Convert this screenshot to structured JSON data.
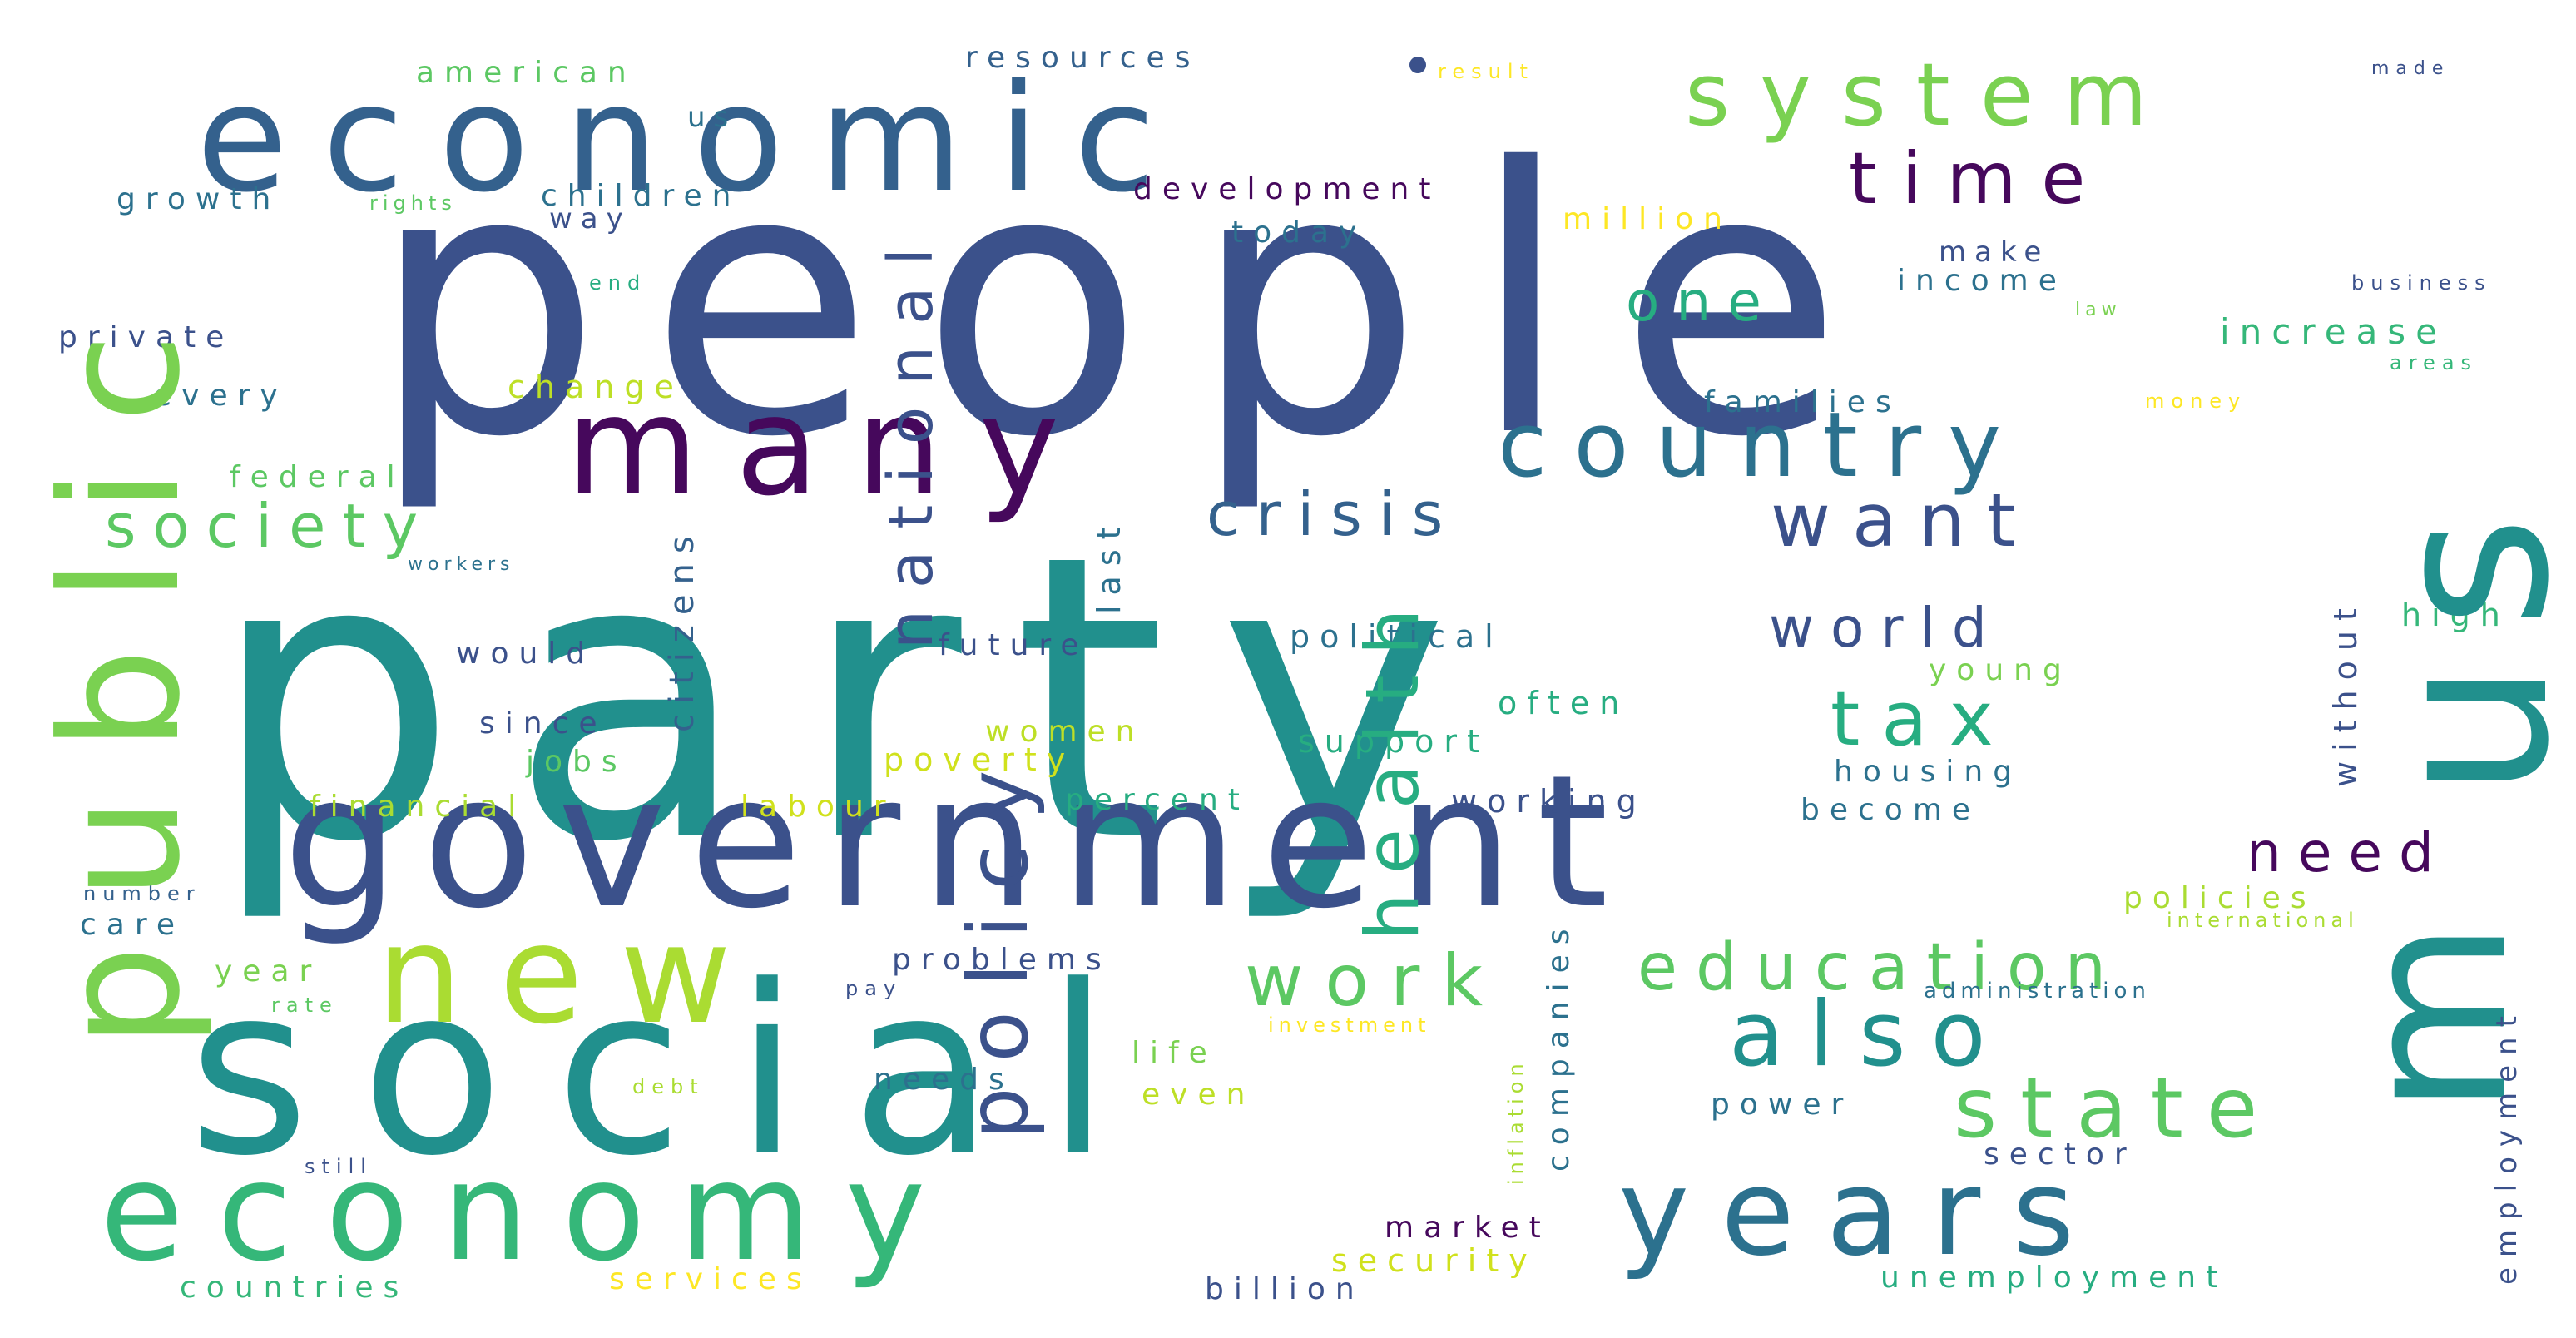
{
  "palette": {
    "dark_purple": "#46085c",
    "indigo": "#3b518b",
    "slate_blue": "#34618d",
    "steel_blue": "#2c718e",
    "teal": "#21908d",
    "sea_green": "#27ad81",
    "green": "#5cc863",
    "lime": "#aadc32",
    "yellow": "#fde725"
  },
  "words": [
    {
      "text": "party",
      "color": "#21908d"
    },
    {
      "text": "people",
      "color": "#3b518b"
    },
    {
      "text": "social",
      "color": "#21908d"
    },
    {
      "text": "government",
      "color": "#3b518b"
    },
    {
      "text": "economic",
      "color": "#34618d"
    },
    {
      "text": "us",
      "color": "#21908d"
    },
    {
      "text": "public",
      "color": "#7ad151"
    },
    {
      "text": "many",
      "color": "#46085c"
    },
    {
      "text": "economy",
      "color": "#35b779"
    },
    {
      "text": "new",
      "color": "#aadc32"
    },
    {
      "text": "system",
      "color": "#7ad151"
    },
    {
      "text": "years",
      "color": "#2c718e"
    },
    {
      "text": "m",
      "color": "#21908d"
    },
    {
      "text": "time",
      "color": "#46085c"
    },
    {
      "text": "country",
      "color": "#2c718e"
    },
    {
      "text": "national",
      "color": "#3b518b"
    },
    {
      "text": "policy",
      "color": "#3b518b"
    },
    {
      "text": "health",
      "color": "#27ad81"
    },
    {
      "text": "also",
      "color": "#21908d"
    },
    {
      "text": "state",
      "color": "#5cc863"
    },
    {
      "text": "education",
      "color": "#5cc863"
    },
    {
      "text": "work",
      "color": "#5cc863"
    },
    {
      "text": "tax",
      "color": "#27ad81"
    },
    {
      "text": "want",
      "color": "#3b518b"
    },
    {
      "text": "society",
      "color": "#5cc863"
    },
    {
      "text": "crisis",
      "color": "#34618d"
    },
    {
      "text": "one",
      "color": "#27ad81"
    },
    {
      "text": "world",
      "color": "#3b518b"
    },
    {
      "text": "need",
      "color": "#46085c"
    },
    {
      "text": "american",
      "color": "#5cc863"
    },
    {
      "text": "resources",
      "color": "#34618d"
    },
    {
      "text": "result",
      "color": "#fde725"
    },
    {
      "text": "made",
      "color": "#3b518b"
    },
    {
      "text": "growth",
      "color": "#2c718e"
    },
    {
      "text": "rights",
      "color": "#5cc863"
    },
    {
      "text": "children",
      "color": "#2c718e"
    },
    {
      "text": "development",
      "color": "#46085c"
    },
    {
      "text": "million",
      "color": "#fde725"
    },
    {
      "text": "way",
      "color": "#3b518b"
    },
    {
      "text": "today",
      "color": "#2c718e"
    },
    {
      "text": "make",
      "color": "#3b518b"
    },
    {
      "text": "income",
      "color": "#2c718e"
    },
    {
      "text": "business",
      "color": "#3b518b"
    },
    {
      "text": "end",
      "color": "#27ad81"
    },
    {
      "text": "law",
      "color": "#7ad151"
    },
    {
      "text": "private",
      "color": "#3b518b"
    },
    {
      "text": "increase",
      "color": "#35b779"
    },
    {
      "text": "areas",
      "color": "#35b779"
    },
    {
      "text": "every",
      "color": "#2c718e"
    },
    {
      "text": "change",
      "color": "#bddf26"
    },
    {
      "text": "families",
      "color": "#2c718e"
    },
    {
      "text": "money",
      "color": "#fde725"
    },
    {
      "text": "citizens",
      "color": "#34618d"
    },
    {
      "text": "federal",
      "color": "#5cc863"
    },
    {
      "text": "last",
      "color": "#2c718e"
    },
    {
      "text": "without",
      "color": "#3b518b"
    },
    {
      "text": "workers",
      "color": "#2c718e"
    },
    {
      "text": "high",
      "color": "#35b779"
    },
    {
      "text": "future",
      "color": "#3b518b"
    },
    {
      "text": "political",
      "color": "#2c718e"
    },
    {
      "text": "would",
      "color": "#3b518b"
    },
    {
      "text": "young",
      "color": "#7ad151"
    },
    {
      "text": "often",
      "color": "#27ad81"
    },
    {
      "text": "since",
      "color": "#3b518b"
    },
    {
      "text": "women",
      "color": "#bddf26"
    },
    {
      "text": "support",
      "color": "#27ad81"
    },
    {
      "text": "jobs",
      "color": "#5cc863"
    },
    {
      "text": "poverty",
      "color": "#d0e11c"
    },
    {
      "text": "housing",
      "color": "#2c718e"
    },
    {
      "text": "financial",
      "color": "#aadc32"
    },
    {
      "text": "labour",
      "color": "#d0e11c"
    },
    {
      "text": "percent",
      "color": "#27ad81"
    },
    {
      "text": "working",
      "color": "#3b518b"
    },
    {
      "text": "become",
      "color": "#2c718e"
    },
    {
      "text": "companies",
      "color": "#2c718e"
    },
    {
      "text": "policies",
      "color": "#aadc32"
    },
    {
      "text": "number",
      "color": "#34618d"
    },
    {
      "text": "international",
      "color": "#aadc32"
    },
    {
      "text": "employment",
      "color": "#3b518b"
    },
    {
      "text": "care",
      "color": "#2c718e"
    },
    {
      "text": "year",
      "color": "#7ad151"
    },
    {
      "text": "problems",
      "color": "#3b518b"
    },
    {
      "text": "administration",
      "color": "#2c718e"
    },
    {
      "text": "rate",
      "color": "#5cc863"
    },
    {
      "text": "pay",
      "color": "#3b518b"
    },
    {
      "text": "investment",
      "color": "#fde725"
    },
    {
      "text": "inflation",
      "color": "#aadc32"
    },
    {
      "text": "life",
      "color": "#7ad151"
    },
    {
      "text": "needs",
      "color": "#2c718e"
    },
    {
      "text": "even",
      "color": "#bddf26"
    },
    {
      "text": "debt",
      "color": "#aadc32"
    },
    {
      "text": "power",
      "color": "#2c718e"
    },
    {
      "text": "sector",
      "color": "#3b518b"
    },
    {
      "text": "still",
      "color": "#3b518b"
    },
    {
      "text": "market",
      "color": "#46085c"
    },
    {
      "text": "security",
      "color": "#d0e11c"
    },
    {
      "text": "countries",
      "color": "#35b779"
    },
    {
      "text": "services",
      "color": "#fde725"
    },
    {
      "text": "billion",
      "color": "#3b518b"
    },
    {
      "text": "unemployment",
      "color": "#27ad81"
    }
  ]
}
